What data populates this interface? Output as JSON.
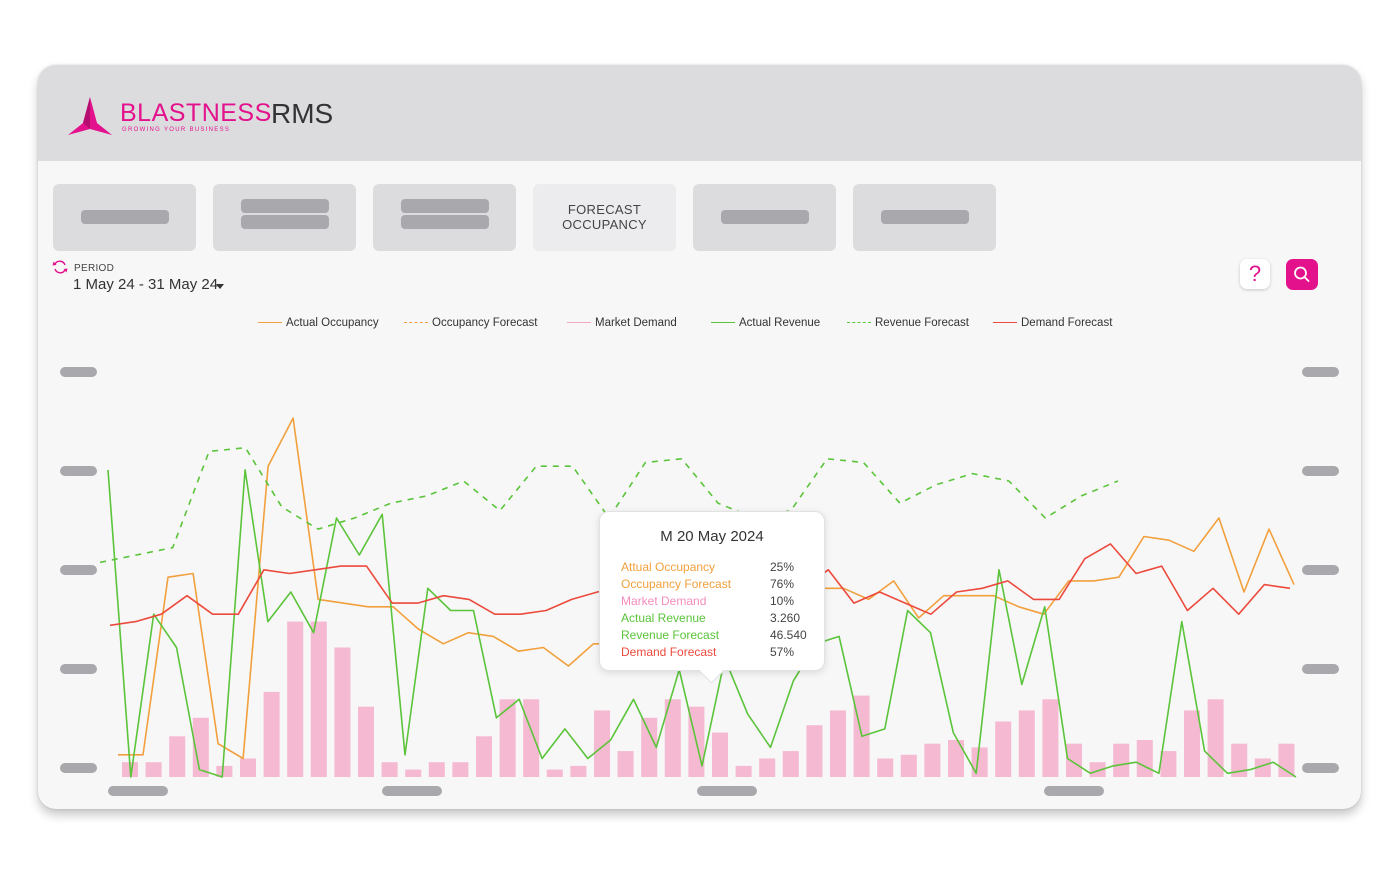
{
  "app": {
    "logo_text": "BLASTNESS",
    "logo_tagline": "GROWING YOUR BUSINESS",
    "title": "RMS"
  },
  "tabs": [
    {
      "label": "",
      "active": false
    },
    {
      "label": "",
      "active": false
    },
    {
      "label": "",
      "active": false
    },
    {
      "label": "FORECAST OCCUPANCY",
      "active": true
    },
    {
      "label": "",
      "active": false
    },
    {
      "label": "",
      "active": false
    }
  ],
  "period": {
    "label": "PERIOD",
    "value": "1 May 24 - 31 May 24",
    "icon": "refresh-icon"
  },
  "actions": {
    "help_label": "?",
    "help_icon": "question-icon",
    "search_icon": "search-icon"
  },
  "colors": {
    "brand": "#e3128c",
    "actual_occupancy": "#f2a03d",
    "occupancy_forecast": "#f2a03d",
    "market_demand": "#f4a9c8",
    "actual_revenue": "#5bc43a",
    "revenue_forecast": "#5bc43a",
    "demand_forecast": "#ec4a3c"
  },
  "legend": [
    {
      "label": "Actual Occupancy",
      "style": "solid",
      "color": "#f2a03d"
    },
    {
      "label": "Occupancy Forecast",
      "style": "dashed",
      "color": "#f2a03d"
    },
    {
      "label": "Market Demand",
      "style": "solid",
      "color": "#f4a9c8"
    },
    {
      "label": "Actual Revenue",
      "style": "solid",
      "color": "#5bc43a"
    },
    {
      "label": "Revenue Forecast",
      "style": "dashed",
      "color": "#5bc43a"
    },
    {
      "label": "Demand Forecast",
      "style": "solid",
      "color": "#ec4a3c"
    }
  ],
  "tooltip": {
    "title": "M 20 May 2024",
    "rows": [
      {
        "label": "Attual Occupancy",
        "value": "25%",
        "color": "#f2a03d"
      },
      {
        "label": "Occupancy Forecast",
        "value": "76%",
        "color": "#f2a03d"
      },
      {
        "label": "Market Demand",
        "value": "10%",
        "color": "#f48cbb"
      },
      {
        "label": "Actual Revenue",
        "value": "3.260",
        "color": "#5bc43a"
      },
      {
        "label": "Revenue Forecast",
        "value": "46.540",
        "color": "#5bc43a"
      },
      {
        "label": "Demand Forecast",
        "value": "57%",
        "color": "#ec4a3c"
      }
    ]
  },
  "chart_data": {
    "type": "bar",
    "title": "",
    "xlabel": "",
    "ylabel": "",
    "ylim": [
      0,
      100
    ],
    "grid": false,
    "legend_position": "top-center",
    "axis_labels_hidden": true,
    "bars": {
      "name": "Market Demand",
      "values": [
        4,
        4,
        11,
        16,
        3,
        5,
        23,
        42,
        42,
        35,
        19,
        4,
        2,
        4,
        4,
        11,
        21,
        21,
        2,
        3,
        18,
        7,
        16,
        21,
        19,
        12,
        3,
        5,
        7,
        14,
        18,
        22,
        5,
        6,
        9,
        10,
        8,
        15,
        18,
        21,
        9,
        4,
        9,
        10,
        7,
        18,
        21,
        9,
        5,
        9
      ]
    },
    "series": [
      {
        "name": "Actual Occupancy",
        "type": "line",
        "values": [
          6,
          6,
          54,
          55,
          9,
          5,
          84,
          97,
          48,
          47,
          46,
          46,
          40,
          36,
          39,
          38,
          34,
          35,
          30,
          36,
          36,
          36,
          38,
          40,
          46,
          53,
          52,
          52,
          51,
          51,
          48,
          53,
          43,
          49,
          49,
          49,
          46,
          44,
          53,
          53,
          54,
          65,
          64,
          61,
          70,
          50,
          67,
          52
        ]
      },
      {
        "name": "Actual Revenue",
        "type": "line",
        "values": [
          83,
          0,
          44,
          35,
          2,
          0,
          83,
          42,
          50,
          39,
          70,
          60,
          71,
          6,
          51,
          45,
          45,
          16,
          21,
          5,
          13,
          5,
          10,
          21,
          8,
          29,
          3,
          32,
          17,
          8,
          26,
          36,
          38,
          11,
          13,
          45,
          39,
          12,
          1,
          56,
          25,
          46,
          5,
          1,
          3,
          4,
          1,
          42,
          7,
          1,
          2,
          4,
          0
        ]
      },
      {
        "name": "Revenue Forecast",
        "type": "dashed-line",
        "values": [
          58,
          60,
          62,
          88,
          89,
          73,
          67,
          70,
          74,
          76,
          80,
          72,
          84,
          84,
          70,
          85,
          86,
          74,
          70,
          72,
          86,
          85,
          74,
          79,
          82,
          80,
          70,
          76,
          80
        ]
      },
      {
        "name": "Demand Forecast",
        "type": "line",
        "values": [
          41,
          42,
          44,
          49,
          44,
          44,
          56,
          55,
          56,
          57,
          57,
          47,
          47,
          49,
          48,
          44,
          44,
          45,
          48,
          50,
          51,
          54,
          54,
          56,
          54,
          58,
          56,
          51,
          56,
          47,
          50,
          47,
          44,
          50,
          51,
          53,
          48,
          48,
          59,
          63,
          55,
          57,
          45,
          51,
          44,
          52,
          51
        ]
      }
    ]
  }
}
